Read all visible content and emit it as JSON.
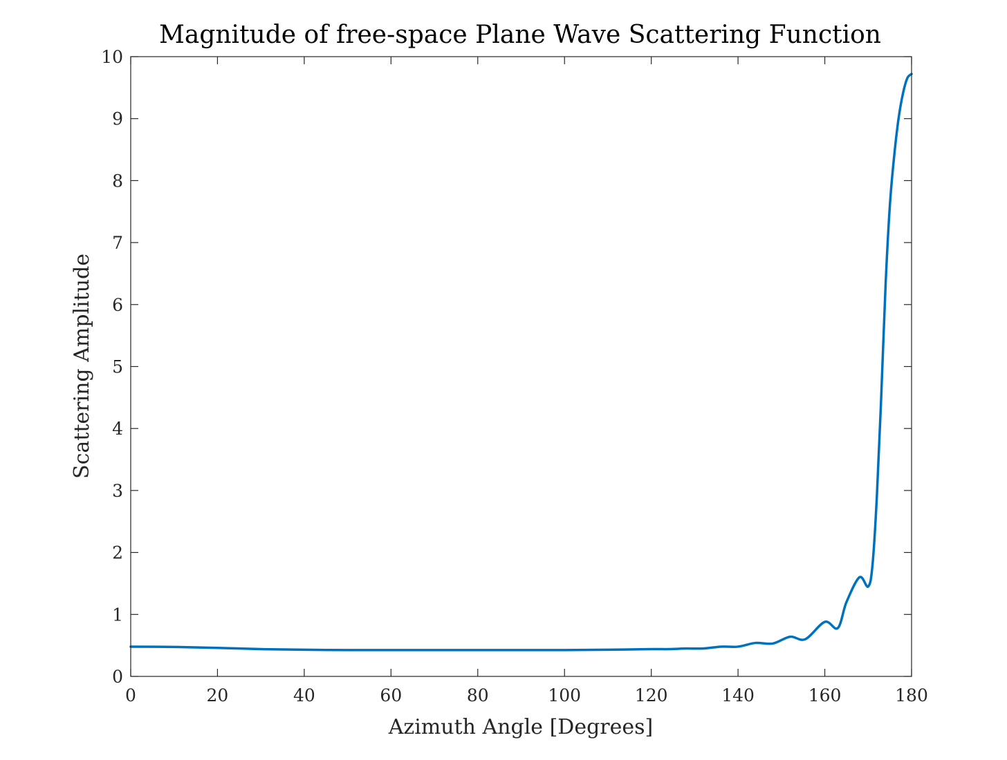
{
  "chart_data": {
    "type": "line",
    "title": "Magnitude of free-space Plane Wave Scattering Function",
    "xlabel": "Azimuth Angle [Degrees]",
    "ylabel": "Scattering Amplitude",
    "xlim": [
      0,
      180
    ],
    "ylim": [
      0,
      10
    ],
    "xticks": [
      "0",
      "20",
      "40",
      "60",
      "80",
      "100",
      "120",
      "140",
      "160",
      "180"
    ],
    "yticks": [
      "0",
      "1",
      "2",
      "3",
      "4",
      "5",
      "6",
      "7",
      "8",
      "9",
      "10"
    ],
    "grid": false,
    "legend": "none",
    "series": [
      {
        "color": "#0072BD",
        "x": [
          0,
          10,
          20,
          30,
          40,
          50,
          60,
          70,
          80,
          90,
          100,
          110,
          120,
          124,
          128,
          132,
          136,
          140,
          144,
          148,
          152,
          155.5,
          160,
          163,
          165,
          168,
          170,
          171,
          172,
          173,
          174,
          175,
          176,
          177,
          178,
          179,
          180
        ],
        "y": [
          0.48,
          0.475,
          0.46,
          0.44,
          0.43,
          0.425,
          0.425,
          0.425,
          0.425,
          0.425,
          0.425,
          0.43,
          0.44,
          0.44,
          0.45,
          0.45,
          0.48,
          0.48,
          0.54,
          0.53,
          0.64,
          0.6,
          0.88,
          0.78,
          1.2,
          1.6,
          1.45,
          1.8,
          2.9,
          4.5,
          6.3,
          7.6,
          8.4,
          9.0,
          9.4,
          9.65,
          9.72
        ]
      }
    ]
  }
}
